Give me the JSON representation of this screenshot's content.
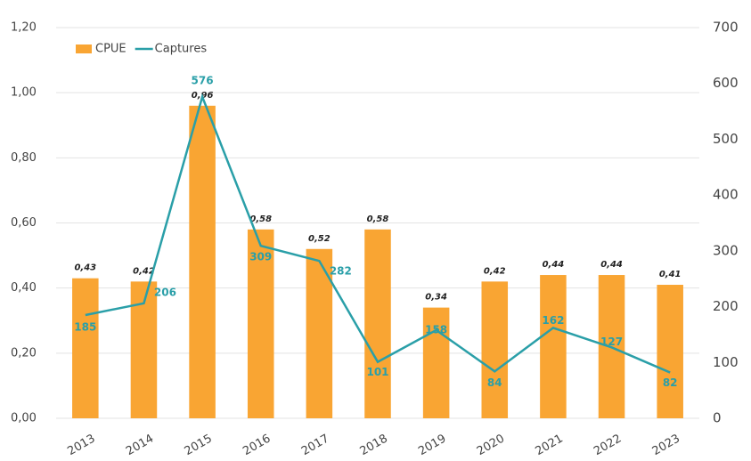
{
  "chart_data": {
    "type": "bar",
    "categories": [
      "2013",
      "2014",
      "2015",
      "2016",
      "2017",
      "2018",
      "2019",
      "2020",
      "2021",
      "2022",
      "2023"
    ],
    "series": [
      {
        "name": "CPUE",
        "type": "bar",
        "color": "#f9a533",
        "values": [
          0.43,
          0.42,
          0.96,
          0.58,
          0.52,
          0.58,
          0.34,
          0.42,
          0.44,
          0.44,
          0.41
        ],
        "value_labels": [
          "0,43",
          "0,42",
          "0,96",
          "0,58",
          "0,52",
          "0,58",
          "0,34",
          "0,42",
          "0,44",
          "0,44",
          "0,41"
        ]
      },
      {
        "name": "Captures",
        "type": "line",
        "axis": "y2",
        "color": "#2a9fa8",
        "values": [
          185,
          206,
          576,
          309,
          282,
          101,
          158,
          84,
          162,
          127,
          82
        ]
      }
    ],
    "ylim": [
      0,
      1.2
    ],
    "yticks": [
      {
        "value": 0,
        "label": "0,00"
      },
      {
        "value": 0.2,
        "label": "0,20"
      },
      {
        "value": 0.4,
        "label": "0,40"
      },
      {
        "value": 0.6,
        "label": "0,60"
      },
      {
        "value": 0.8,
        "label": "0,80"
      },
      {
        "value": 1.0,
        "label": "1,00"
      },
      {
        "value": 1.2,
        "label": "1,20"
      }
    ],
    "y2lim": [
      0,
      700
    ],
    "y2ticks": [
      0,
      100,
      200,
      300,
      400,
      500,
      600,
      700
    ],
    "grid": true,
    "legend": "top-left"
  }
}
